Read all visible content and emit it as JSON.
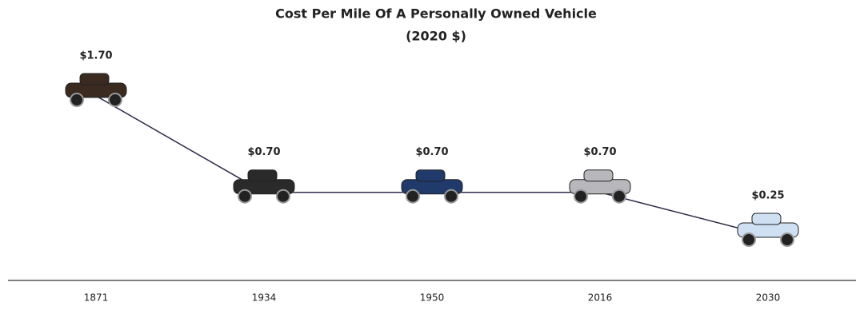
{
  "chart_data": {
    "type": "line",
    "title": "Cost Per Mile Of A Personally Owned Vehicle",
    "subtitle": "(2020 $)",
    "categories": [
      "1871",
      "1934",
      "1950",
      "2016",
      "2030"
    ],
    "values": [
      1.7,
      0.7,
      0.7,
      0.7,
      0.25
    ],
    "value_labels": [
      "$1.70",
      "$0.70",
      "$0.70",
      "$0.70",
      "$0.25"
    ],
    "color": "#2b2b48",
    "marker_colors": [
      "#3a2a20",
      "#2a2a2a",
      "#1f3a6b",
      "#b8b8bc",
      "#cfe0f2"
    ]
  }
}
